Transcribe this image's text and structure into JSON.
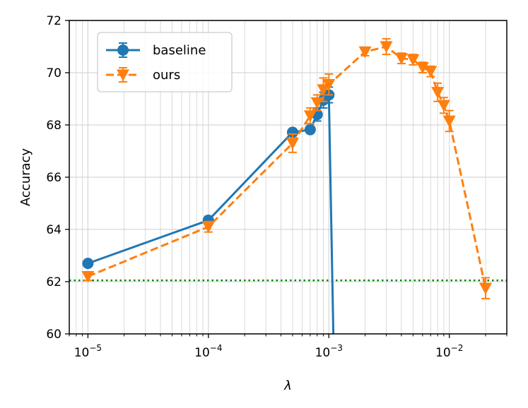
{
  "chart_data": {
    "type": "line",
    "xscale": "log",
    "xlabel": "λ",
    "ylabel": "Accuracy",
    "xlim": [
      7e-06,
      0.03
    ],
    "ylim": [
      60,
      72
    ],
    "grid": true,
    "legend_position": "top-left",
    "yticks": [
      60,
      62,
      64,
      66,
      68,
      70,
      72
    ],
    "xticks": [
      {
        "value": 1e-05,
        "base": "10",
        "exp": "−5"
      },
      {
        "value": 0.0001,
        "base": "10",
        "exp": "−4"
      },
      {
        "value": 0.001,
        "base": "10",
        "exp": "−3"
      },
      {
        "value": 0.01,
        "base": "10",
        "exp": "−2"
      }
    ],
    "reference_line": {
      "y": 62.05,
      "color": "#008000",
      "style": "dotted"
    },
    "series": [
      {
        "name": "baseline",
        "color": "#1f77b4",
        "linestyle": "solid",
        "marker": "circle",
        "points": [
          {
            "x": 1e-05,
            "y": 62.7,
            "err": 0.1
          },
          {
            "x": 0.0001,
            "y": 64.35,
            "err": 0.15
          },
          {
            "x": 0.0005,
            "y": 67.72,
            "err": 0.1
          },
          {
            "x": 0.0007,
            "y": 67.82,
            "err": 0.1
          },
          {
            "x": 0.0008,
            "y": 68.4,
            "err": 0.25
          },
          {
            "x": 0.0009,
            "y": 68.95,
            "err": 0.3
          },
          {
            "x": 0.001,
            "y": 69.15,
            "err": 0.3
          },
          {
            "x": 0.0011,
            "y": 59.0,
            "err": 0
          }
        ]
      },
      {
        "name": "ours",
        "color": "#ff7f0e",
        "linestyle": "dashed",
        "marker": "triangle-down",
        "points": [
          {
            "x": 1e-05,
            "y": 62.2,
            "err": 0.15
          },
          {
            "x": 0.0001,
            "y": 64.1,
            "err": 0.2
          },
          {
            "x": 0.0005,
            "y": 67.3,
            "err": 0.35
          },
          {
            "x": 0.0007,
            "y": 68.35,
            "err": 0.3
          },
          {
            "x": 0.0008,
            "y": 68.85,
            "err": 0.3
          },
          {
            "x": 0.0009,
            "y": 69.35,
            "err": 0.45
          },
          {
            "x": 0.001,
            "y": 69.55,
            "err": 0.4
          },
          {
            "x": 0.002,
            "y": 70.8,
            "err": 0.15
          },
          {
            "x": 0.003,
            "y": 71.0,
            "err": 0.3
          },
          {
            "x": 0.004,
            "y": 70.55,
            "err": 0.2
          },
          {
            "x": 0.005,
            "y": 70.5,
            "err": 0.2
          },
          {
            "x": 0.006,
            "y": 70.2,
            "err": 0.2
          },
          {
            "x": 0.007,
            "y": 70.05,
            "err": 0.2
          },
          {
            "x": 0.008,
            "y": 69.25,
            "err": 0.35
          },
          {
            "x": 0.009,
            "y": 68.75,
            "err": 0.3
          },
          {
            "x": 0.01,
            "y": 68.15,
            "err": 0.4
          },
          {
            "x": 0.02,
            "y": 61.75,
            "err": 0.4
          }
        ]
      }
    ]
  }
}
